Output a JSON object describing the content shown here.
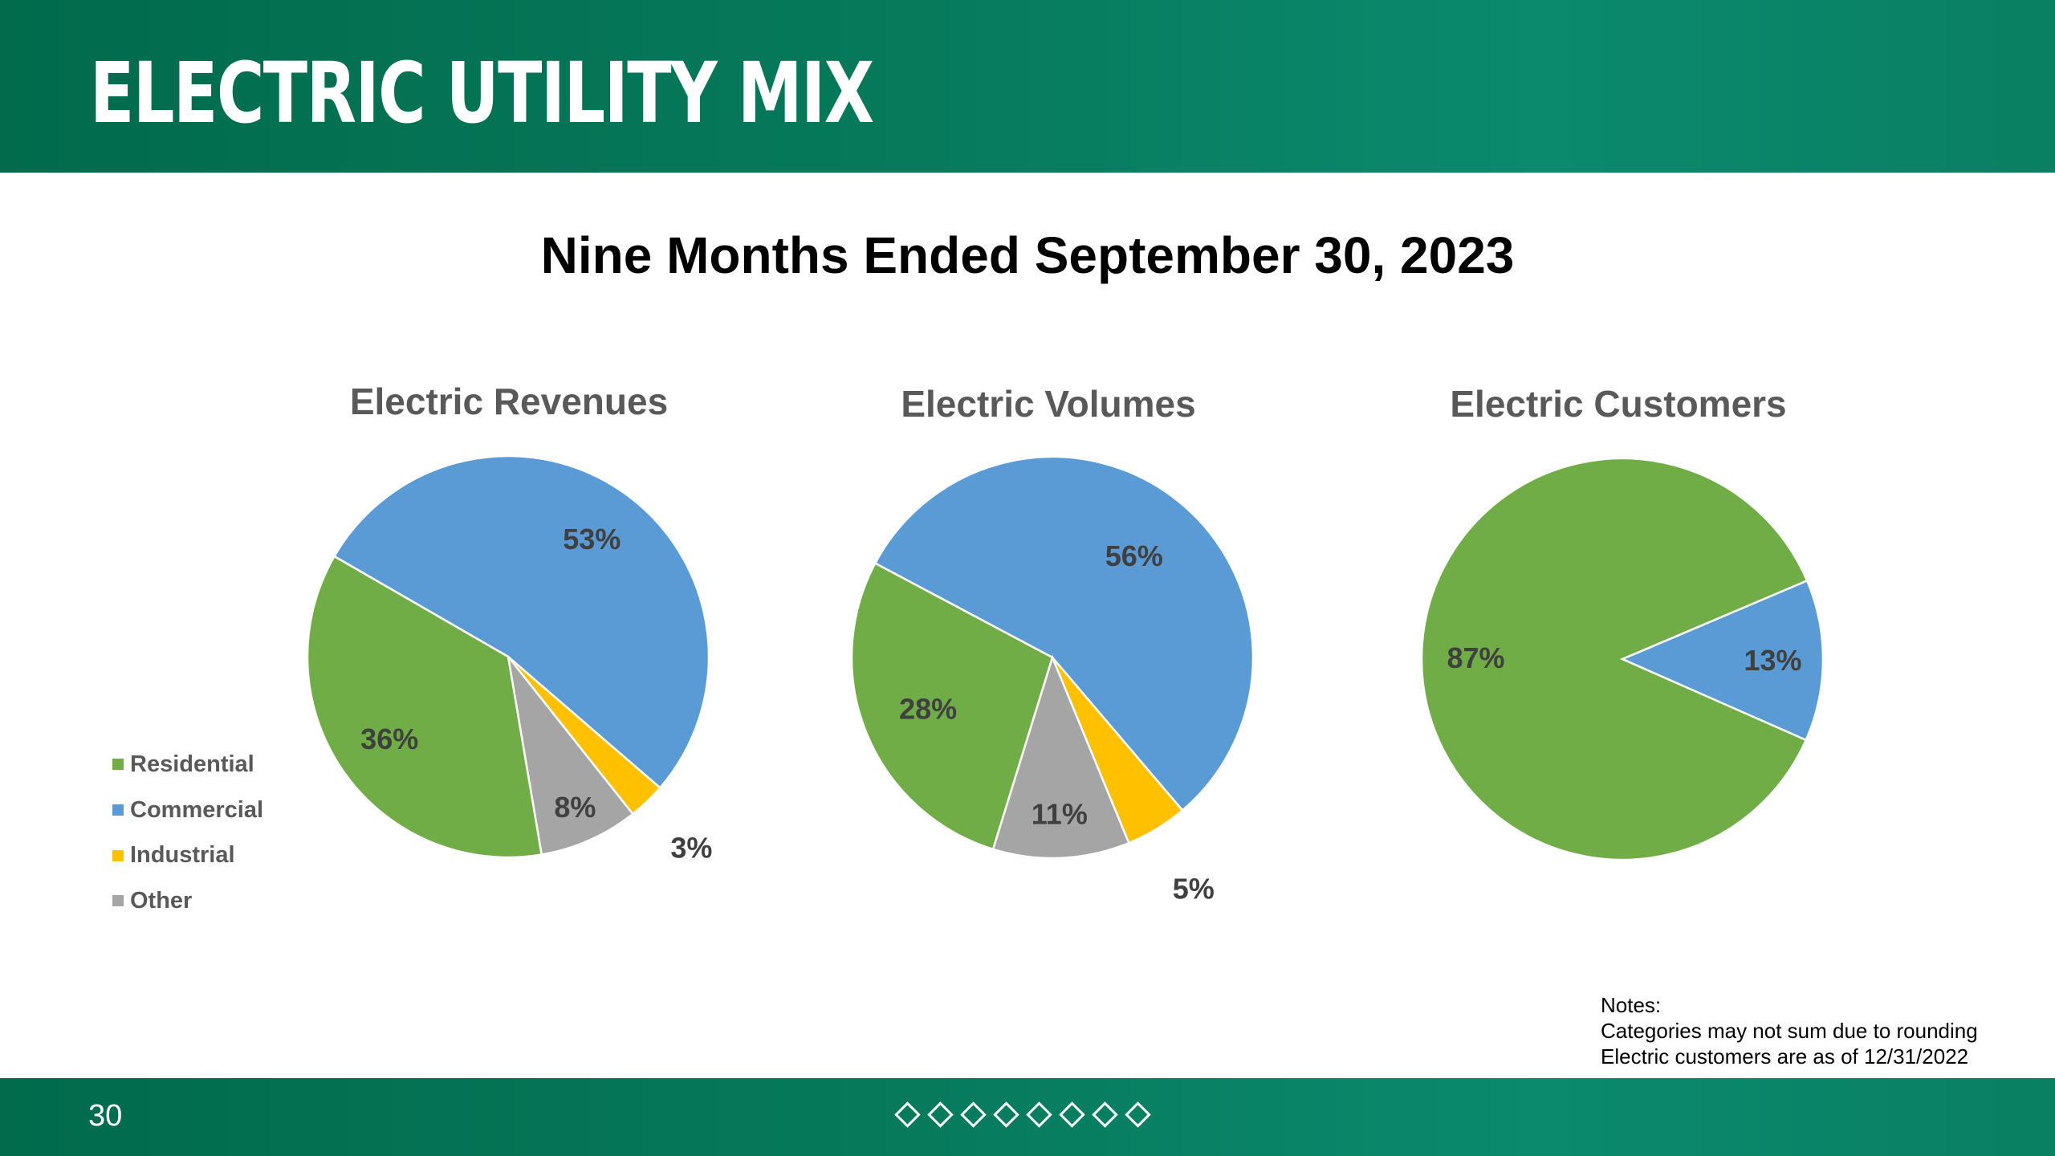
{
  "header": {
    "title": "ELECTRIC UTILITY MIX"
  },
  "subtitle": "Nine Months Ended September 30, 2023",
  "colors": {
    "Residential": "#70ad47",
    "Commercial": "#5b9bd5",
    "Industrial": "#ffc000",
    "Other": "#a5a5a5"
  },
  "legend": {
    "items": [
      {
        "label": "Residential",
        "color": "#70ad47"
      },
      {
        "label": "Commercial",
        "color": "#5b9bd5"
      },
      {
        "label": "Industrial",
        "color": "#ffc000"
      },
      {
        "label": "Other",
        "color": "#a5a5a5"
      }
    ]
  },
  "chart_data": [
    {
      "type": "pie",
      "title": "Electric Revenues",
      "categories": [
        "Commercial",
        "Industrial",
        "Other",
        "Residential"
      ],
      "values": [
        53,
        3,
        8,
        36
      ],
      "labels": [
        "53%",
        "3%",
        "8%",
        "36%"
      ]
    },
    {
      "type": "pie",
      "title": "Electric Volumes",
      "categories": [
        "Commercial",
        "Industrial",
        "Other",
        "Residential"
      ],
      "values": [
        56,
        5,
        11,
        28
      ],
      "labels": [
        "56%",
        "5%",
        "11%",
        "28%"
      ]
    },
    {
      "type": "pie",
      "title": "Electric Customers",
      "categories": [
        "Commercial",
        "Residential"
      ],
      "values": [
        13,
        87
      ],
      "labels": [
        "13%",
        "87%"
      ]
    }
  ],
  "notes": {
    "heading": "Notes:",
    "lines": [
      "Categories may not sum due to rounding",
      "Electric customers are as of 12/31/2022"
    ]
  },
  "footer": {
    "page_number": "30"
  }
}
